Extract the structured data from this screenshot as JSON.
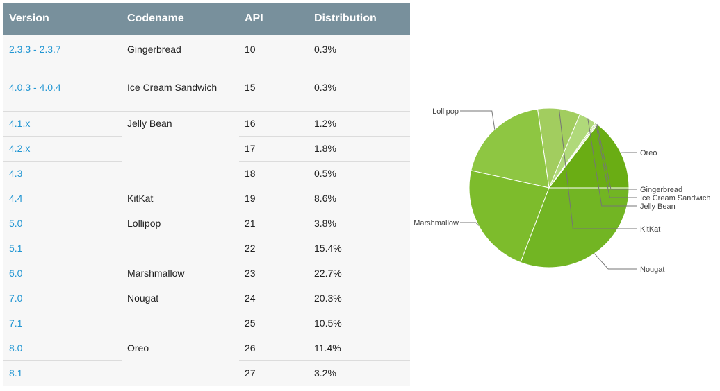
{
  "table": {
    "headers": [
      "Version",
      "Codename",
      "API",
      "Distribution"
    ],
    "rows": [
      {
        "version": "2.3.3 - 2.3.7",
        "codename": "Gingerbread",
        "api": "10",
        "distribution": "0.3%"
      },
      {
        "version": "4.0.3 - 4.0.4",
        "codename": "Ice Cream Sandwich",
        "api": "15",
        "distribution": "0.3%"
      },
      {
        "version": "4.1.x",
        "codename": "Jelly Bean",
        "api": "16",
        "distribution": "1.2%"
      },
      {
        "version": "4.2.x",
        "codename": "",
        "api": "17",
        "distribution": "1.8%"
      },
      {
        "version": "4.3",
        "codename": "",
        "api": "18",
        "distribution": "0.5%"
      },
      {
        "version": "4.4",
        "codename": "KitKat",
        "api": "19",
        "distribution": "8.6%"
      },
      {
        "version": "5.0",
        "codename": "Lollipop",
        "api": "21",
        "distribution": "3.8%"
      },
      {
        "version": "5.1",
        "codename": "",
        "api": "22",
        "distribution": "15.4%"
      },
      {
        "version": "6.0",
        "codename": "Marshmallow",
        "api": "23",
        "distribution": "22.7%"
      },
      {
        "version": "7.0",
        "codename": "Nougat",
        "api": "24",
        "distribution": "20.3%"
      },
      {
        "version": "7.1",
        "codename": "",
        "api": "25",
        "distribution": "10.5%"
      },
      {
        "version": "8.0",
        "codename": "Oreo",
        "api": "26",
        "distribution": "11.4%"
      },
      {
        "version": "8.1",
        "codename": "",
        "api": "27",
        "distribution": "3.2%"
      }
    ]
  },
  "chart_data": {
    "type": "pie",
    "categories": [
      "Oreo",
      "Gingerbread",
      "Ice Cream Sandwich",
      "Jelly Bean",
      "KitKat",
      "Lollipop",
      "Marshmallow",
      "Nougat"
    ],
    "values": [
      14.6,
      0.3,
      0.3,
      3.5,
      8.6,
      19.2,
      22.7,
      30.8
    ],
    "colors": [
      "#6aad14",
      "#d9e9c3",
      "#c1e08f",
      "#b0d97a",
      "#a2cd5f",
      "#8ec642",
      "#7dbc2c",
      "#72b523"
    ],
    "start_angle_deg": 0,
    "direction": "counterclockwise",
    "legend": "labels-outside"
  }
}
